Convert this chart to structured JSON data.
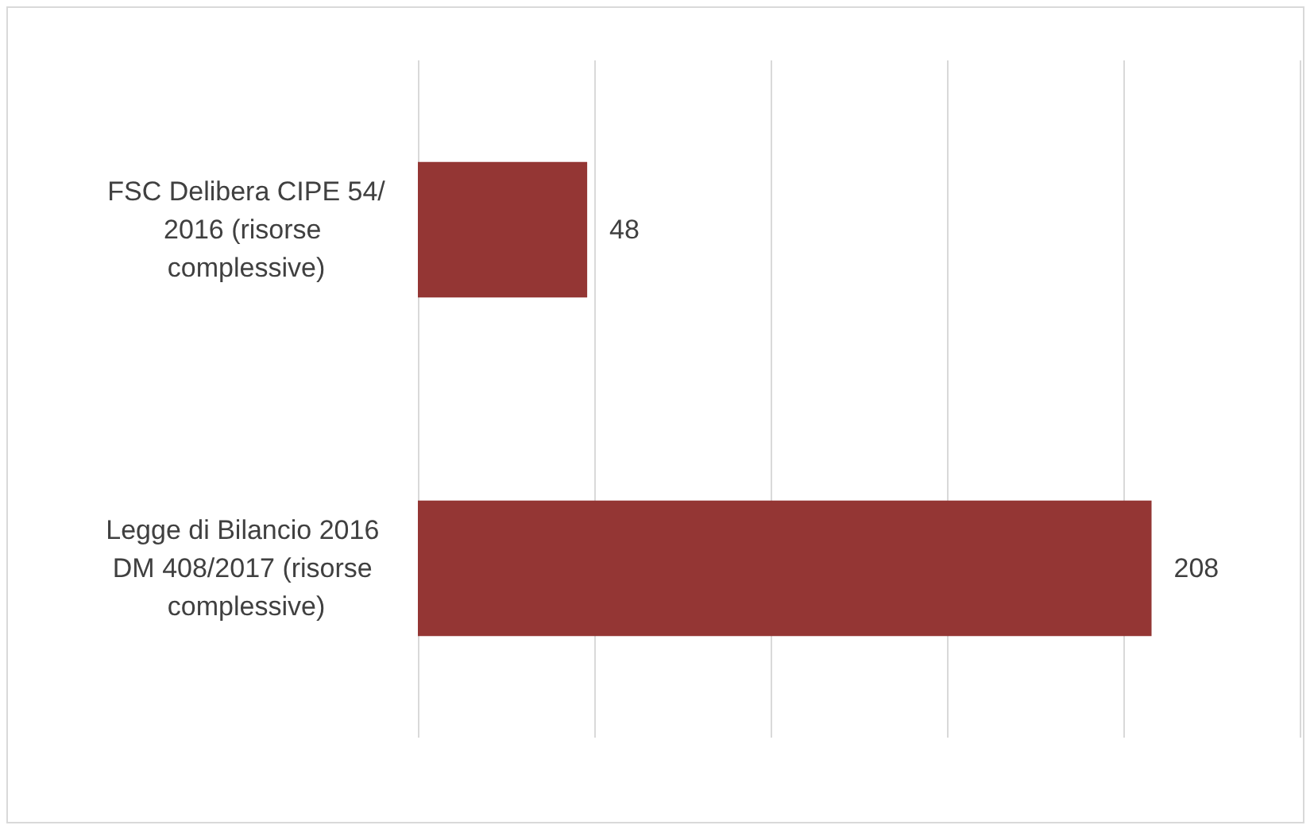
{
  "chart_data": {
    "type": "bar",
    "orientation": "horizontal",
    "categories": [
      "FSC Delibera CIPE 54/2016 (risorse complessive)",
      "Legge di Bilancio 2016 DM 408/2017 (risorse complessive)"
    ],
    "values": [
      48,
      208
    ],
    "color": "#943634",
    "data_labels": true,
    "xlim": [
      0,
      250
    ],
    "xticks": [
      {
        "value": 0,
        "label": null
      },
      {
        "value": 50,
        "label": null
      },
      {
        "value": 100,
        "label": null
      },
      {
        "value": 150,
        "label": null
      },
      {
        "value": 200,
        "label": null
      },
      {
        "value": 250,
        "label": null
      }
    ],
    "grid": "x",
    "tick_labels": "y"
  }
}
